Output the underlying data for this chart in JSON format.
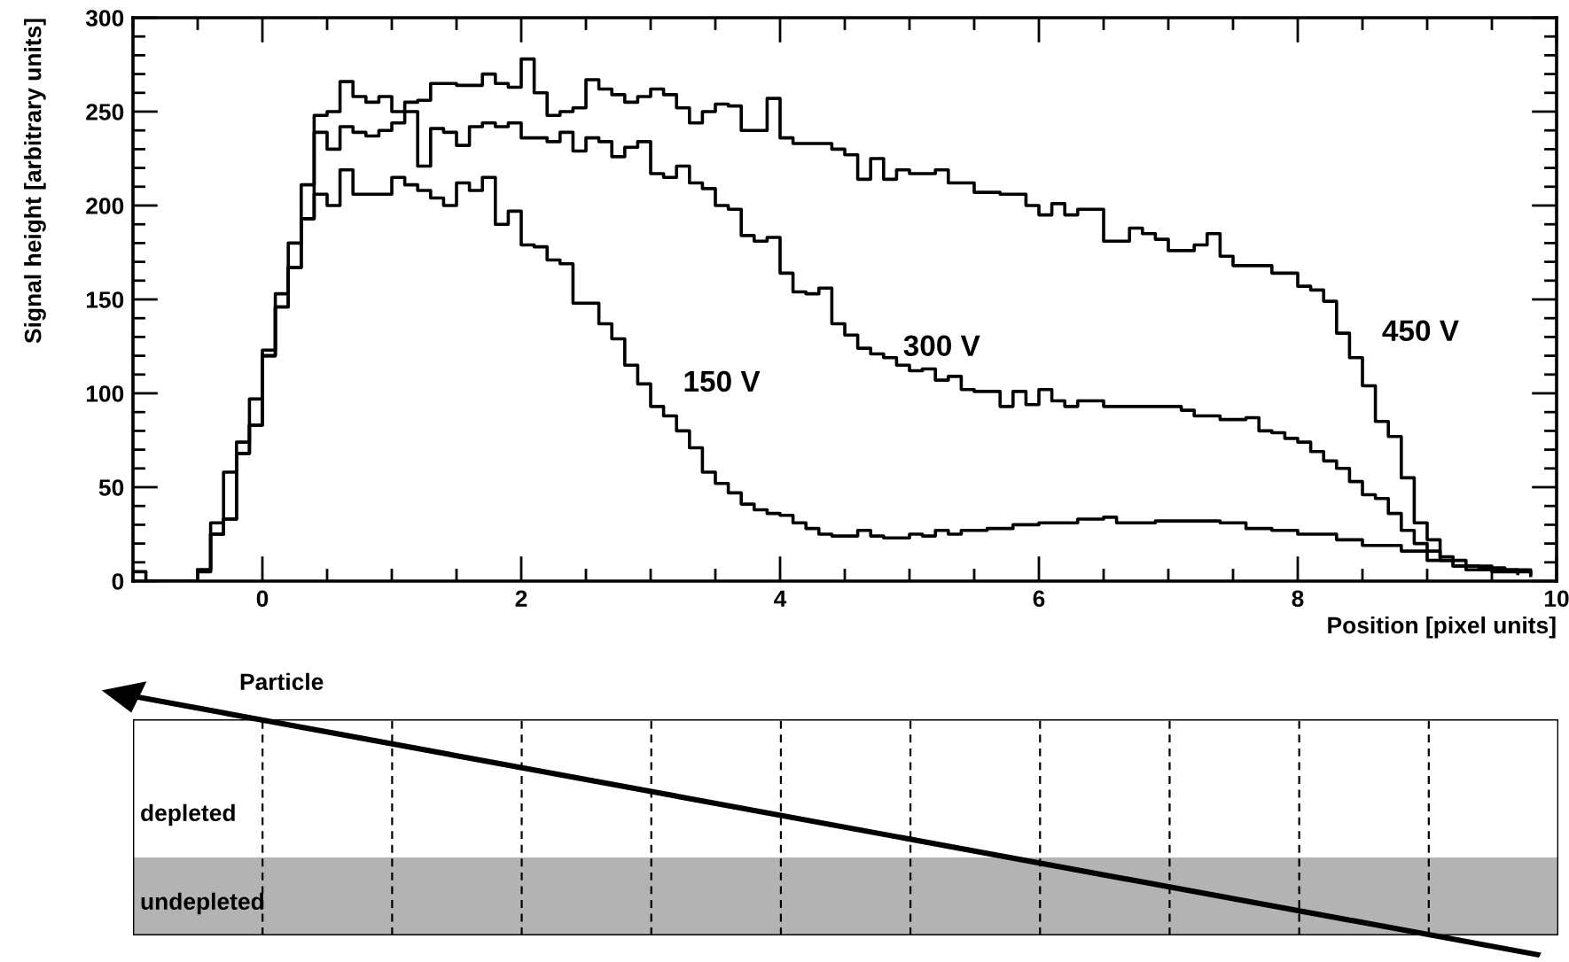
{
  "chart_data": {
    "type": "step",
    "xlabel": "Position [pixel units]",
    "ylabel": "Signal height [arbitrary units]",
    "xlim": [
      -1,
      10
    ],
    "ylim": [
      0,
      300
    ],
    "xticks": [
      0,
      2,
      4,
      6,
      8,
      10
    ],
    "yticks": [
      0,
      50,
      100,
      150,
      200,
      250,
      300
    ],
    "grid": false,
    "series": [
      {
        "name": "450 V",
        "color": "#000000",
        "x": [
          -1.0,
          -0.9,
          -0.5,
          -0.4,
          -0.3,
          -0.2,
          -0.1,
          0,
          0.1,
          0.2,
          0.3,
          0.4,
          0.5,
          0.6,
          0.7,
          0.8,
          0.9,
          1.0,
          1.1,
          1.2,
          1.3,
          1.5,
          1.7,
          1.8,
          1.9,
          2.0,
          2.1,
          2.2,
          2.3,
          2.4,
          2.5,
          2.6,
          2.7,
          2.8,
          2.9,
          3.0,
          3.1,
          3.2,
          3.3,
          3.4,
          3.5,
          3.6,
          3.7,
          3.8,
          3.9,
          4.0,
          4.1,
          4.3,
          4.4,
          4.5,
          4.6,
          4.7,
          4.8,
          4.9,
          5.0,
          5.2,
          5.3,
          5.5,
          5.7,
          5.9,
          6.0,
          6.1,
          6.2,
          6.3,
          6.5,
          6.7,
          6.8,
          6.9,
          7.0,
          7.2,
          7.3,
          7.4,
          7.5,
          7.8,
          8.0,
          8.1,
          8.2,
          8.3,
          8.4,
          8.5,
          8.6,
          8.7,
          8.8,
          8.9,
          9.0,
          9.1,
          9.2,
          9.5,
          9.8
        ],
        "values": [
          5,
          0,
          6,
          31,
          58,
          74,
          97,
          123,
          153,
          180,
          211,
          248,
          250,
          266,
          258,
          255,
          258,
          250,
          255,
          256,
          265,
          264,
          270,
          265,
          263,
          278,
          260,
          248,
          250,
          252,
          267,
          262,
          259,
          255,
          258,
          262,
          259,
          252,
          244,
          250,
          254,
          253,
          240,
          240,
          257,
          236,
          233,
          233,
          230,
          227,
          214,
          225,
          214,
          219,
          217,
          219,
          212,
          207,
          206,
          200,
          195,
          201,
          195,
          198,
          181,
          188,
          185,
          182,
          176,
          179,
          185,
          173,
          168,
          164,
          157,
          155,
          149,
          132,
          119,
          104,
          85,
          77,
          55,
          31,
          22,
          13,
          8,
          5,
          3
        ]
      },
      {
        "name": "300 V",
        "color": "#000000",
        "x": [
          -0.5,
          -0.4,
          -0.3,
          -0.2,
          -0.1,
          0,
          0.1,
          0.2,
          0.3,
          0.4,
          0.5,
          0.6,
          0.7,
          0.8,
          0.9,
          1.0,
          1.1,
          1.2,
          1.3,
          1.4,
          1.5,
          1.6,
          1.7,
          1.8,
          1.9,
          2.0,
          2.2,
          2.3,
          2.4,
          2.5,
          2.6,
          2.7,
          2.8,
          2.9,
          3.0,
          3.1,
          3.2,
          3.3,
          3.4,
          3.5,
          3.6,
          3.7,
          3.8,
          3.9,
          4.0,
          4.1,
          4.2,
          4.3,
          4.4,
          4.5,
          4.6,
          4.7,
          4.8,
          4.9,
          5.0,
          5.1,
          5.2,
          5.3,
          5.4,
          5.5,
          5.7,
          5.8,
          5.9,
          6.0,
          6.1,
          6.2,
          6.3,
          6.5,
          7.1,
          7.2,
          7.4,
          7.6,
          7.7,
          7.8,
          7.9,
          8.0,
          8.1,
          8.2,
          8.3,
          8.4,
          8.5,
          8.6,
          8.7,
          8.8,
          8.9,
          9.0,
          9.1,
          9.2,
          9.4,
          9.6,
          9.8
        ],
        "values": [
          6,
          25,
          33,
          68,
          83,
          120,
          146,
          167,
          193,
          239,
          230,
          242,
          239,
          237,
          240,
          244,
          250,
          221,
          241,
          239,
          232,
          242,
          244,
          242,
          244,
          236,
          234,
          239,
          229,
          236,
          234,
          226,
          231,
          234,
          217,
          215,
          221,
          212,
          209,
          200,
          198,
          184,
          181,
          183,
          164,
          154,
          153,
          156,
          137,
          131,
          124,
          121,
          119,
          115,
          112,
          113,
          107,
          109,
          102,
          101,
          93,
          101,
          94,
          102,
          96,
          93,
          96,
          93,
          91,
          88,
          86,
          87,
          80,
          79,
          76,
          74,
          69,
          64,
          60,
          53,
          46,
          44,
          36,
          27,
          20,
          16,
          11,
          8,
          7,
          6,
          4
        ]
      },
      {
        "name": "150 V",
        "color": "#000000",
        "x": [
          -0.5,
          -0.4,
          -0.3,
          -0.2,
          -0.1,
          0,
          0.1,
          0.2,
          0.3,
          0.4,
          0.5,
          0.6,
          0.7,
          0.9,
          1.0,
          1.1,
          1.2,
          1.3,
          1.4,
          1.5,
          1.6,
          1.7,
          1.8,
          1.9,
          2.0,
          2.1,
          2.2,
          2.3,
          2.4,
          2.6,
          2.7,
          2.8,
          2.9,
          3.0,
          3.1,
          3.2,
          3.3,
          3.4,
          3.5,
          3.6,
          3.7,
          3.8,
          3.9,
          4.0,
          4.1,
          4.2,
          4.3,
          4.4,
          4.6,
          4.7,
          4.8,
          5.0,
          5.1,
          5.2,
          5.3,
          5.4,
          5.6,
          5.8,
          6.0,
          6.3,
          6.5,
          6.6,
          6.9,
          7.4,
          7.6,
          7.8,
          8.0,
          8.3,
          8.5,
          8.8,
          9.0,
          9.3,
          9.7
        ],
        "values": [
          5,
          25,
          33,
          68,
          83,
          120,
          146,
          167,
          193,
          206,
          200,
          219,
          206,
          206,
          215,
          211,
          208,
          204,
          200,
          212,
          208,
          215,
          190,
          197,
          179,
          178,
          171,
          169,
          148,
          137,
          129,
          115,
          105,
          93,
          88,
          80,
          71,
          58,
          52,
          47,
          41,
          38,
          36,
          35,
          31,
          28,
          25,
          24,
          27,
          24,
          23,
          25,
          24,
          27,
          25,
          27,
          28,
          30,
          31,
          33,
          34,
          31,
          32,
          31,
          28,
          27,
          25,
          22,
          19,
          16,
          11,
          6,
          4
        ]
      }
    ],
    "annotations": [
      "Particle",
      "depleted",
      "undepleted"
    ]
  }
}
